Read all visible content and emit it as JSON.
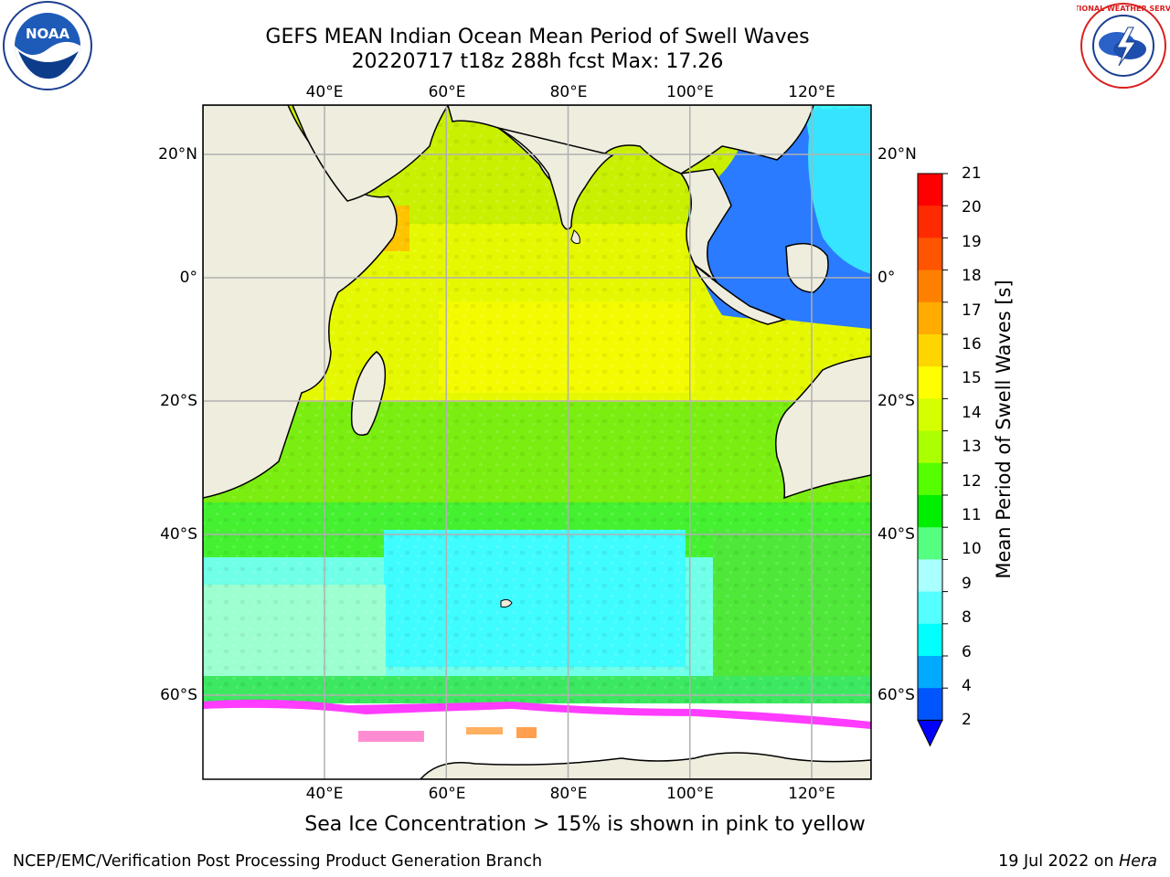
{
  "title": {
    "line1": "GEFS MEAN Indian Ocean Mean Period of Swell Waves",
    "line2": "20220717 t18z 288h fcst   Max: 17.26"
  },
  "map": {
    "lon_range": [
      20,
      130
    ],
    "lat_range": [
      -72,
      28
    ],
    "lon_ticks": [
      "40°E",
      "60°E",
      "80°E",
      "100°E",
      "120°E"
    ],
    "lat_ticks": [
      "20°N",
      "0°",
      "20°S",
      "40°S",
      "60°S"
    ],
    "grid": true,
    "land_color": "#efedde",
    "ice_color": "#ffffff"
  },
  "colorbar": {
    "title": "Mean Period of Swell Waves [s]",
    "labels": [
      "21",
      "20",
      "19",
      "18",
      "17",
      "16",
      "15",
      "14",
      "13",
      "12",
      "11",
      "10",
      "9",
      "8",
      "6",
      "4",
      "2"
    ],
    "colors": [
      "#ff0000",
      "#ff2a00",
      "#ff5500",
      "#ff8000",
      "#ffab00",
      "#ffd500",
      "#ffff00",
      "#d5ff00",
      "#aaff00",
      "#55ff00",
      "#00ee00",
      "#55ff80",
      "#aaffff",
      "#55ffff",
      "#00ffff",
      "#00aaff",
      "#0055ff"
    ],
    "extend_color": "#0000ff"
  },
  "footnote": "Sea Ice Concentration > 15% is shown in pink to yellow",
  "credit": "NCEP/EMC/Verification Post Processing Product Generation Branch",
  "date": "19 Jul 2022 on",
  "date_machine": "Hera",
  "logos": {
    "left": "NOAA",
    "right": "NATIONAL WEATHER SERVICE"
  }
}
